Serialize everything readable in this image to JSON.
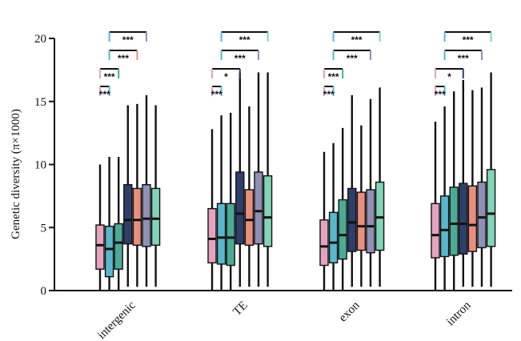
{
  "chart_data": {
    "type": "box",
    "ylabel": "Genetic diversity (π×1000)",
    "ylim": [
      0,
      20
    ],
    "yticks": [
      "0",
      "5",
      "10",
      "15",
      "20"
    ],
    "categories": [
      "intergenic",
      "TE",
      "exon",
      "intron"
    ],
    "series_colors": [
      "#e6a3bd",
      "#57b8cc",
      "#4bab95",
      "#2e3f6b",
      "#e88e7b",
      "#8e90b6",
      "#80d4b7"
    ],
    "groups": [
      {
        "category": "intergenic",
        "boxes": [
          {
            "min": 0,
            "q1": 1.7,
            "median": 3.6,
            "q3": 5.2,
            "max": 10.0
          },
          {
            "min": 0,
            "q1": 1.1,
            "median": 3.3,
            "q3": 5.1,
            "max": 10.6
          },
          {
            "min": 0,
            "q1": 1.7,
            "median": 3.8,
            "q3": 5.3,
            "max": 10.6
          },
          {
            "min": 0.3,
            "q1": 3.7,
            "median": 5.6,
            "q3": 8.4,
            "max": 14.7
          },
          {
            "min": 0.3,
            "q1": 3.6,
            "median": 5.6,
            "q3": 8.1,
            "max": 14.8
          },
          {
            "min": 0.3,
            "q1": 3.5,
            "median": 5.7,
            "q3": 8.4,
            "max": 15.5
          },
          {
            "min": 0.3,
            "q1": 3.6,
            "median": 5.7,
            "q3": 8.1,
            "max": 14.7
          }
        ],
        "comparisons": [
          {
            "from": 0,
            "to": 1,
            "label": "***",
            "level": 0
          },
          {
            "from": 0,
            "to": 2,
            "label": "***",
            "level": 1
          },
          {
            "from": 1,
            "to": 4,
            "label": "***",
            "level": 2
          },
          {
            "from": 1,
            "to": 5,
            "label": "***",
            "level": 3
          }
        ]
      },
      {
        "category": "TE",
        "boxes": [
          {
            "min": 0,
            "q1": 2.2,
            "median": 4.1,
            "q3": 6.5,
            "max": 12.8
          },
          {
            "min": 0,
            "q1": 2.1,
            "median": 4.2,
            "q3": 6.9,
            "max": 13.9
          },
          {
            "min": 0,
            "q1": 2.0,
            "median": 4.2,
            "q3": 6.9,
            "max": 14.1
          },
          {
            "min": 0.3,
            "q1": 3.7,
            "median": 6.1,
            "q3": 9.4,
            "max": 17.3
          },
          {
            "min": 0.3,
            "q1": 3.6,
            "median": 5.6,
            "q3": 8.0,
            "max": 14.6
          },
          {
            "min": 0.3,
            "q1": 3.7,
            "median": 6.3,
            "q3": 9.4,
            "max": 17.3
          },
          {
            "min": 0.3,
            "q1": 3.5,
            "median": 5.8,
            "q3": 9.1,
            "max": 17.3
          }
        ],
        "comparisons": [
          {
            "from": 0,
            "to": 1,
            "label": "***",
            "level": 0
          },
          {
            "from": 0,
            "to": 3,
            "label": "*",
            "level": 1
          },
          {
            "from": 1,
            "to": 5,
            "label": "***",
            "level": 2
          },
          {
            "from": 1,
            "to": 6,
            "label": "***",
            "level": 3
          }
        ]
      },
      {
        "category": "exon",
        "boxes": [
          {
            "min": 0,
            "q1": 2.0,
            "median": 3.5,
            "q3": 5.6,
            "max": 11.0
          },
          {
            "min": 0,
            "q1": 2.2,
            "median": 3.8,
            "q3": 6.2,
            "max": 11.7
          },
          {
            "min": 0,
            "q1": 2.5,
            "median": 4.4,
            "q3": 7.2,
            "max": 12.9
          },
          {
            "min": 0.3,
            "q1": 3.1,
            "median": 5.4,
            "q3": 8.1,
            "max": 15.5
          },
          {
            "min": 0.3,
            "q1": 3.2,
            "median": 5.1,
            "q3": 7.8,
            "max": 13.1
          },
          {
            "min": 0.3,
            "q1": 3.0,
            "median": 5.1,
            "q3": 8.0,
            "max": 15.2
          },
          {
            "min": 0.3,
            "q1": 3.2,
            "median": 5.8,
            "q3": 8.6,
            "max": 16.1
          }
        ],
        "comparisons": [
          {
            "from": 0,
            "to": 1,
            "label": "***",
            "level": 0
          },
          {
            "from": 0,
            "to": 2,
            "label": "***",
            "level": 1
          },
          {
            "from": 1,
            "to": 5,
            "label": "***",
            "level": 2
          },
          {
            "from": 1,
            "to": 6,
            "label": "***",
            "level": 3
          }
        ]
      },
      {
        "category": "intron",
        "boxes": [
          {
            "min": 0,
            "q1": 2.6,
            "median": 4.4,
            "q3": 6.9,
            "max": 13.4
          },
          {
            "min": 0,
            "q1": 2.7,
            "median": 4.8,
            "q3": 7.5,
            "max": 14.6
          },
          {
            "min": 0,
            "q1": 2.8,
            "median": 5.3,
            "q3": 8.2,
            "max": 15.8
          },
          {
            "min": 0.3,
            "q1": 2.9,
            "median": 5.3,
            "q3": 8.5,
            "max": 16.7
          },
          {
            "min": 0.3,
            "q1": 3.1,
            "median": 5.2,
            "q3": 8.3,
            "max": 15.9
          },
          {
            "min": 0.3,
            "q1": 3.4,
            "median": 5.8,
            "q3": 8.6,
            "max": 16.1
          },
          {
            "min": 0.3,
            "q1": 3.5,
            "median": 6.1,
            "q3": 9.6,
            "max": 17.3
          }
        ],
        "comparisons": [
          {
            "from": 0,
            "to": 1,
            "label": "***",
            "level": 0
          },
          {
            "from": 0,
            "to": 3,
            "label": "*",
            "level": 1
          },
          {
            "from": 1,
            "to": 5,
            "label": "***",
            "level": 2
          },
          {
            "from": 1,
            "to": 6,
            "label": "***",
            "level": 3
          }
        ]
      }
    ]
  }
}
